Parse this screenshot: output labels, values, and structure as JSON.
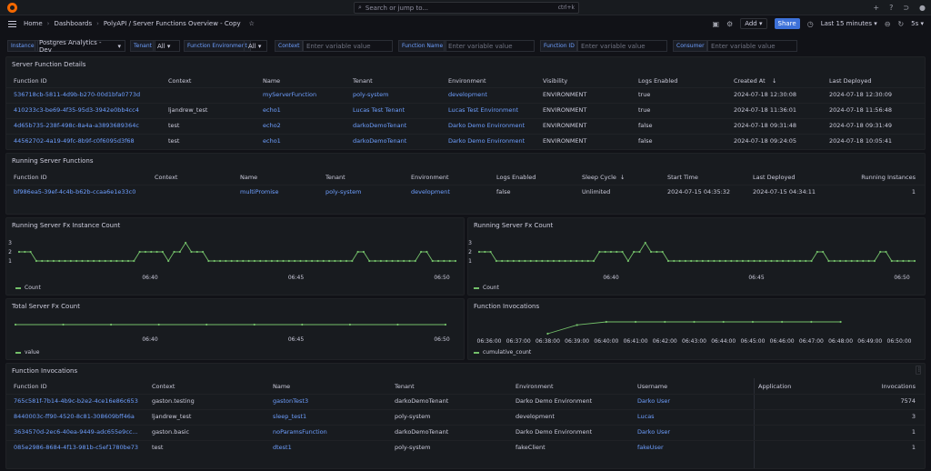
{
  "topbar": {
    "search_placeholder": "Search or jump to...",
    "search_kbd": "ctrl+k"
  },
  "breadcrumb": {
    "home": "Home",
    "dashboards": "Dashboards",
    "current": "PolyAPI / Server Functions Overview - Copy"
  },
  "toolbar": {
    "add_label": "Add",
    "share_label": "Share",
    "time_range": "Last 15 minutes",
    "refresh": "5s"
  },
  "variables": {
    "instance_label": "Instance",
    "instance_value": "Postgres Analytics - Dev",
    "tenant_label": "Tenant",
    "tenant_value": "All",
    "env_label": "Function Environment",
    "env_value": "All",
    "context_label": "Context",
    "context_placeholder": "Enter variable value",
    "fname_label": "Function Name",
    "fname_placeholder": "Enter variable value",
    "fid_label": "Function ID",
    "fid_placeholder": "Enter variable value",
    "consumer_label": "Consumer",
    "consumer_placeholder": "Enter variable value"
  },
  "details": {
    "title": "Server Function Details",
    "headers": [
      "Function ID",
      "Context",
      "Name",
      "Tenant",
      "Environment",
      "Visibility",
      "Logs Enabled",
      "Created At",
      "Last Deployed"
    ],
    "rows": [
      [
        "536718cb-5811-4d9b-b270-00d1bfa0773d",
        "",
        "myServerFunction",
        "poly-system",
        "development",
        "ENVIRONMENT",
        "true",
        "2024-07-18 12:30:08",
        "2024-07-18 12:30:09"
      ],
      [
        "410233c3-be69-4f35-95d3-3942e0bb4cc4",
        "ljandrew_test",
        "echo1",
        "Lucas Test Tenant",
        "Lucas Test Environment",
        "ENVIRONMENT",
        "true",
        "2024-07-18 11:36:01",
        "2024-07-18 11:56:48"
      ],
      [
        "4d65b735-238f-498c-8a4a-a3893689364c",
        "test",
        "echo2",
        "darkoDemoTenant",
        "Darko Demo Environment",
        "ENVIRONMENT",
        "false",
        "2024-07-18 09:31:48",
        "2024-07-18 09:31:49"
      ],
      [
        "44562702-4a19-49fc-8b9f-c0f6095d3f68",
        "test",
        "echo1",
        "darkoDemoTenant",
        "Darko Demo Environment",
        "ENVIRONMENT",
        "false",
        "2024-07-18 09:24:05",
        "2024-07-18 10:05:41"
      ]
    ]
  },
  "running": {
    "title": "Running Server Functions",
    "headers": [
      "Function ID",
      "Context",
      "Name",
      "Tenant",
      "Environment",
      "Logs Enabled",
      "Sleep Cycle",
      "Start Time",
      "Last Deployed",
      "Running Instances"
    ],
    "rows": [
      [
        "bf986ea5-39ef-4c4b-b62b-ccaa6e1e33c0",
        "",
        "multiPromise",
        "poly-system",
        "development",
        "false",
        "Unlimited",
        "2024-07-15 04:35:32",
        "2024-07-15 04:34:11",
        "1"
      ]
    ]
  },
  "chart_data": [
    {
      "type": "line",
      "title": "Running Server Fx Instance Count",
      "ylim": [
        0,
        3
      ],
      "yticks": [
        "3",
        "2",
        "1"
      ],
      "xticks": [
        "06:40",
        "06:45",
        "06:50"
      ],
      "series": [
        {
          "name": "Count",
          "values": [
            2,
            2,
            2,
            1,
            1,
            1,
            1,
            1,
            1,
            1,
            1,
            1,
            1,
            1,
            1,
            1,
            1,
            1,
            1,
            1,
            1,
            2,
            2,
            2,
            2,
            2,
            1,
            2,
            2,
            3,
            2,
            2,
            2,
            1,
            1,
            1,
            1,
            1,
            1,
            1,
            1,
            1,
            1,
            1,
            1,
            1,
            1,
            1,
            1,
            1,
            1,
            1,
            1,
            1,
            1,
            1,
            1,
            1,
            1,
            2,
            2,
            1,
            1,
            1,
            1,
            1,
            1,
            1,
            1,
            1,
            2,
            2,
            1,
            1,
            1,
            1,
            1
          ]
        }
      ]
    },
    {
      "type": "line",
      "title": "Running Server Fx Count",
      "ylim": [
        0,
        3
      ],
      "yticks": [
        "3",
        "2",
        "1"
      ],
      "xticks": [
        "06:40",
        "06:45",
        "06:50"
      ],
      "series": [
        {
          "name": "Count",
          "values": [
            2,
            2,
            2,
            1,
            1,
            1,
            1,
            1,
            1,
            1,
            1,
            1,
            1,
            1,
            1,
            1,
            1,
            1,
            1,
            1,
            1,
            2,
            2,
            2,
            2,
            2,
            1,
            2,
            2,
            3,
            2,
            2,
            2,
            1,
            1,
            1,
            1,
            1,
            1,
            1,
            1,
            1,
            1,
            1,
            1,
            1,
            1,
            1,
            1,
            1,
            1,
            1,
            1,
            1,
            1,
            1,
            1,
            1,
            1,
            2,
            2,
            1,
            1,
            1,
            1,
            1,
            1,
            1,
            1,
            1,
            2,
            2,
            1,
            1,
            1,
            1,
            1
          ]
        }
      ]
    },
    {
      "type": "line",
      "title": "Total Server Fx Count",
      "xticks": [
        "06:40",
        "06:45",
        "06:50"
      ],
      "series": [
        {
          "name": "value",
          "values": [
            1,
            1,
            1,
            1,
            1,
            1,
            1,
            1,
            1,
            1
          ]
        }
      ]
    },
    {
      "type": "line",
      "title": "Function Invocations",
      "xticks": [
        "06:36:00",
        "06:37:00",
        "06:38:00",
        "06:39:00",
        "06:40:00",
        "06:41:00",
        "06:42:00",
        "06:43:00",
        "06:44:00",
        "06:45:00",
        "06:46:00",
        "06:47:00",
        "06:48:00",
        "06:49:00",
        "06:50:00"
      ],
      "series": [
        {
          "name": "cumulative_count",
          "values": [
            null,
            null,
            7540,
            7565,
            7574,
            7574,
            7574,
            7574,
            7574,
            7574,
            7574,
            7574,
            7574,
            null,
            null
          ]
        }
      ]
    }
  ],
  "invocations": {
    "title": "Function Invocations",
    "headers": [
      "Function ID",
      "Context",
      "Name",
      "Tenant",
      "Environment",
      "Username",
      "Application",
      "Invocations"
    ],
    "rows": [
      [
        "765c581f-7b14-4b9c-b2e2-4ce16e86c653",
        "gaston.testing",
        "gastonTest3",
        "darkoDemoTenant",
        "Darko Demo Environment",
        "Darko User",
        "",
        "7574"
      ],
      [
        "8440003c-ff90-4520-8c81-308609bff46a",
        "ljandrew_test",
        "sleep_test1",
        "poly-system",
        "development",
        "Lucas",
        "",
        "3"
      ],
      [
        "3634570d-2ec6-40ea-9449-adc655e9cc...",
        "gaston.basic",
        "noParamsFunction",
        "darkoDemoTenant",
        "Darko Demo Environment",
        "Darko User",
        "",
        "1"
      ],
      [
        "085e2986-8684-4f13-981b-c5ef1780be73",
        "test",
        "dtest1",
        "poly-system",
        "fakeClient",
        "fakeUser",
        "",
        "1"
      ]
    ]
  },
  "colors": {
    "accent": "#6e9fff",
    "series": "#73bf69",
    "share": "#3d71d9"
  }
}
